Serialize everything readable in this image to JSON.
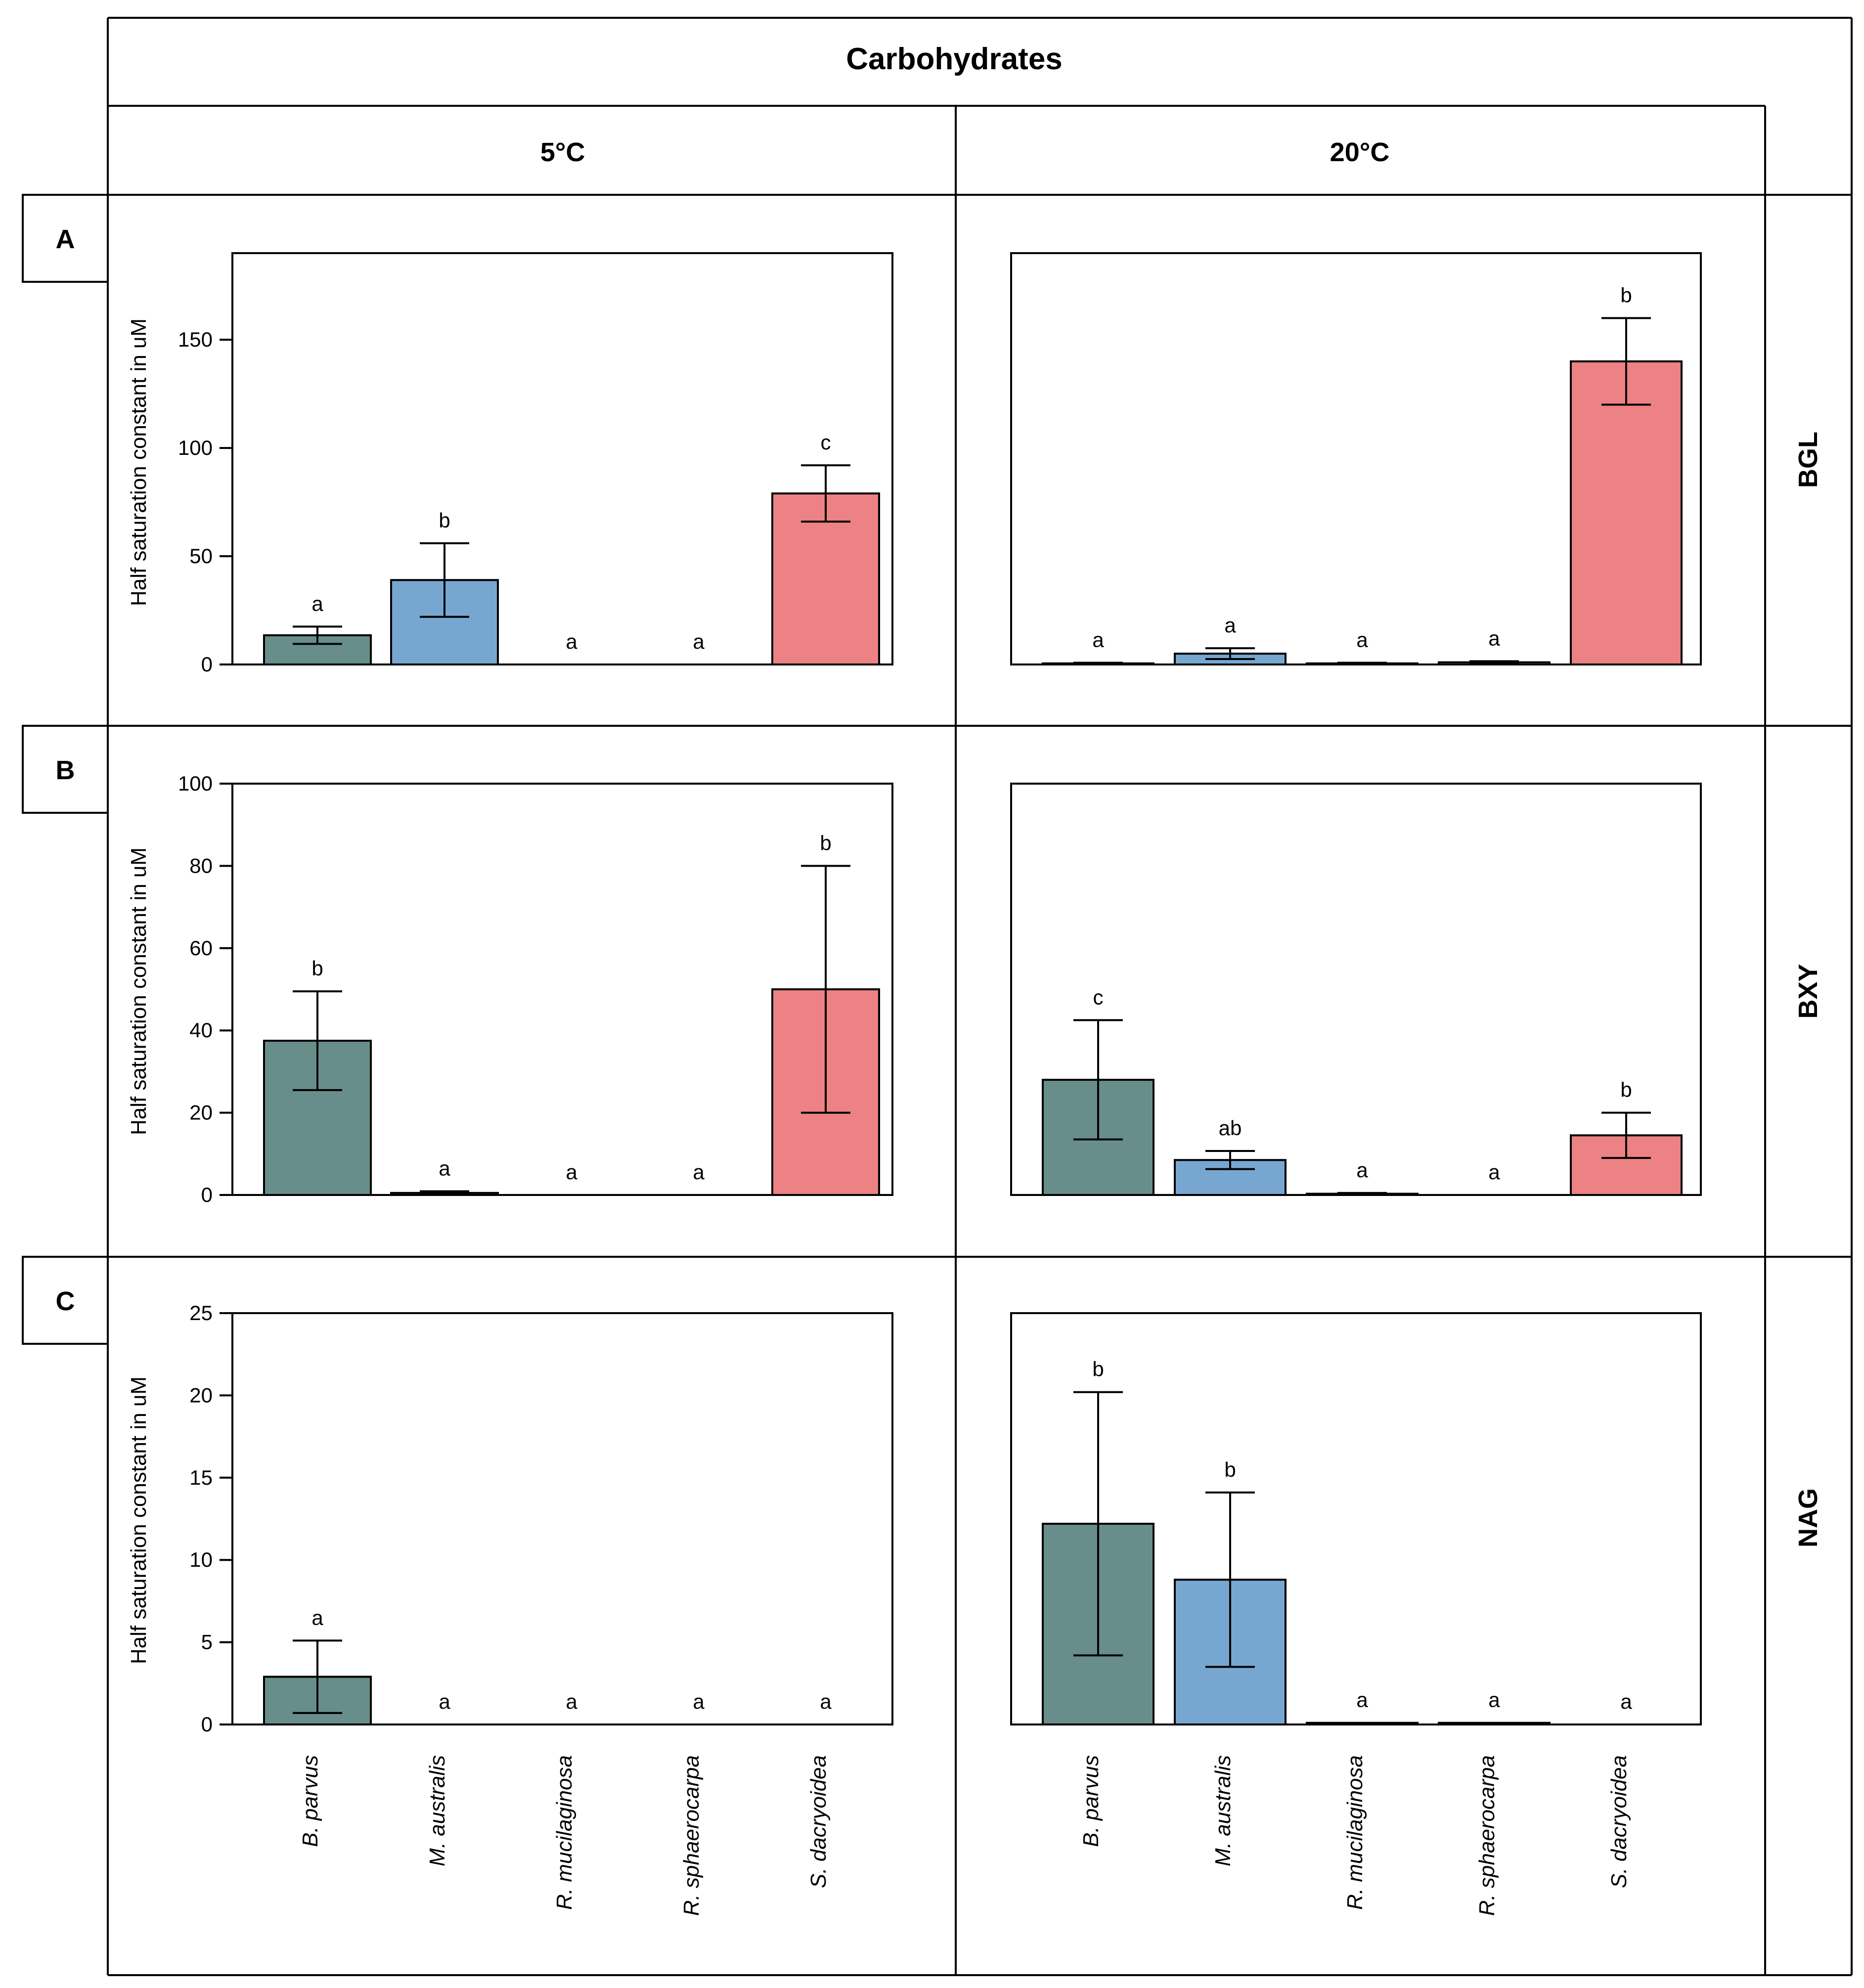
{
  "chart_data": {
    "type": "bar",
    "title": "Carbohydrates",
    "columns": [
      "5°C",
      "20°C"
    ],
    "categories": [
      "B. parvus",
      "M. australis",
      "R. mucilaginosa",
      "R. sphaerocarpa",
      "S. dacryoidea"
    ],
    "colors": [
      "#678e8a",
      "#77a7d1",
      "#ec8283",
      "#ec8283",
      "#ec8283"
    ],
    "color_scheme": {
      "B. parvus": "#678e8a",
      "M. australis": "#77a7d1",
      "S. dacryoidea": "#ec8283"
    },
    "ylabel": "Half saturation constant in uM",
    "rows": [
      {
        "panel": "A",
        "enzyme": "BGL",
        "ylim": [
          0,
          190
        ],
        "yticks": [
          0,
          50,
          100,
          150
        ],
        "charts": [
          {
            "temperature": "5°C",
            "values": [
              13.5,
              39,
              0,
              0,
              79
            ],
            "errors": [
              4,
              17,
              0,
              0,
              13
            ],
            "letters": [
              "a",
              "b",
              "a",
              "a",
              "c"
            ]
          },
          {
            "temperature": "20°C",
            "values": [
              0.5,
              5,
              0.5,
              1,
              140
            ],
            "errors": [
              0.3,
              2.5,
              0.3,
              0.5,
              20
            ],
            "letters": [
              "a",
              "a",
              "a",
              "a",
              "b"
            ]
          }
        ]
      },
      {
        "panel": "B",
        "enzyme": "BXY",
        "ylim": [
          0,
          100
        ],
        "yticks": [
          0,
          20,
          40,
          60,
          80,
          100
        ],
        "charts": [
          {
            "temperature": "5°C",
            "values": [
              37.5,
              0.5,
              0,
              0,
              50
            ],
            "errors": [
              12,
              0.4,
              0,
              0,
              30
            ],
            "letters": [
              "b",
              "a",
              "a",
              "a",
              "b"
            ]
          },
          {
            "temperature": "20°C",
            "values": [
              28,
              8.5,
              0.3,
              0,
              14.5
            ],
            "errors": [
              14.5,
              2.2,
              0.2,
              0,
              5.5
            ],
            "letters": [
              "c",
              "ab",
              "a",
              "a",
              "b"
            ]
          }
        ]
      },
      {
        "panel": "C",
        "enzyme": "NAG",
        "ylim": [
          0,
          25
        ],
        "yticks": [
          0,
          5,
          10,
          15,
          20,
          25
        ],
        "charts": [
          {
            "temperature": "5°C",
            "values": [
              2.9,
              0,
              0,
              0,
              0
            ],
            "errors": [
              2.2,
              0,
              0,
              0,
              0
            ],
            "letters": [
              "a",
              "a",
              "a",
              "a",
              "a"
            ]
          },
          {
            "temperature": "20°C",
            "values": [
              12.2,
              8.8,
              0.1,
              0.1,
              0
            ],
            "errors": [
              8,
              5.3,
              0,
              0,
              0
            ],
            "letters": [
              "b",
              "b",
              "a",
              "a",
              "a"
            ]
          }
        ]
      }
    ]
  }
}
